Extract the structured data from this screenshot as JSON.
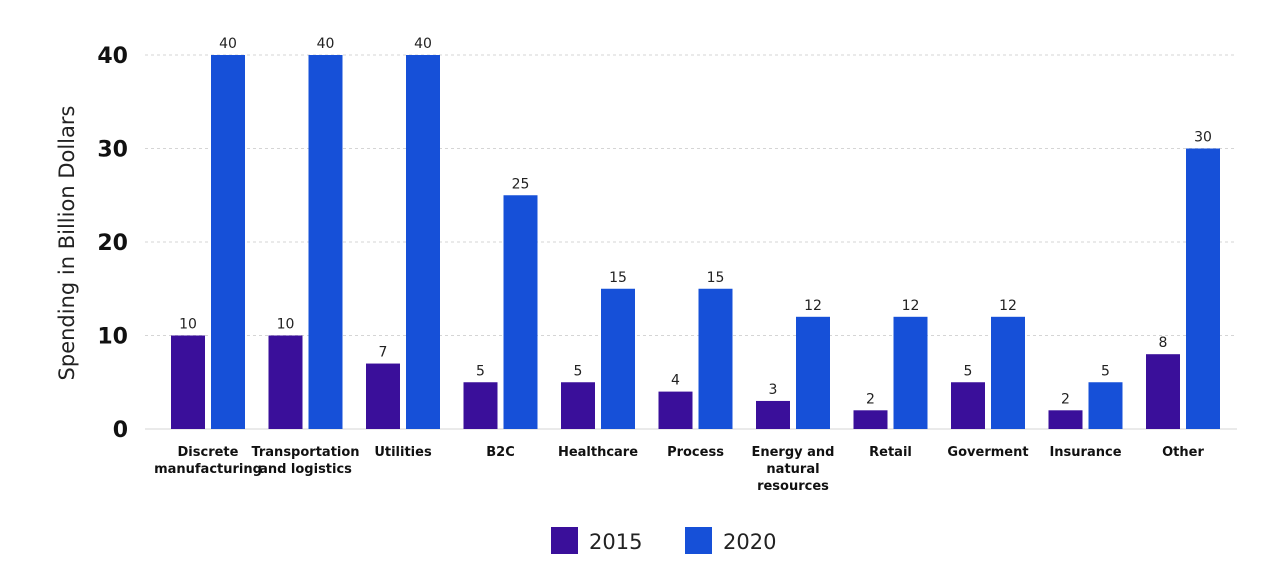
{
  "chart_data": {
    "type": "bar",
    "title": "",
    "xlabel": "",
    "ylabel": "Spending in Billion Dollars",
    "ylim": [
      0,
      40
    ],
    "yticks": [
      0,
      10,
      20,
      30,
      40
    ],
    "grid": true,
    "legend_position": "bottom-center",
    "categories": [
      "Discrete manufacturing",
      "Transportation and logistics",
      "Utilities",
      "B2C",
      "Healthcare",
      "Process",
      "Energy and natural resources",
      "Retail",
      "Goverment",
      "Insurance",
      "Other"
    ],
    "series": [
      {
        "name": "2015",
        "color": "#3a0f9a",
        "values": [
          10,
          10,
          7,
          5,
          5,
          4,
          3,
          2,
          5,
          2,
          8
        ]
      },
      {
        "name": "2020",
        "color": "#1650d8",
        "values": [
          40,
          40,
          40,
          25,
          15,
          15,
          12,
          12,
          12,
          5,
          30
        ]
      }
    ]
  }
}
